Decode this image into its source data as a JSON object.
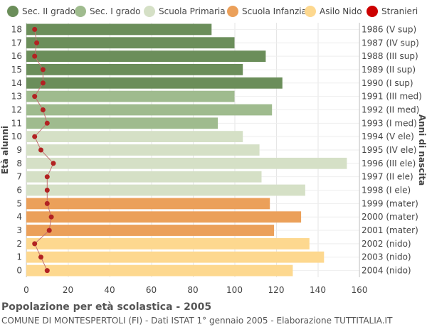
{
  "chart_data": {
    "type": "bar",
    "orientation": "horizontal",
    "ylabel_left": "Età alunni",
    "ylabel_right": "Anni di nascita",
    "xlim": [
      0,
      160
    ],
    "xticks": [
      0,
      20,
      40,
      60,
      80,
      100,
      120,
      140,
      160
    ],
    "grid": true,
    "legend_position": "top",
    "legend": [
      {
        "name": "Sec. II grado",
        "color": "#6b8e5a"
      },
      {
        "name": "Sec. I grado",
        "color": "#9fbb8e"
      },
      {
        "name": "Scuola Primaria",
        "color": "#d5e0c6"
      },
      {
        "name": "Scuola Infanzia",
        "color": "#eba05a"
      },
      {
        "name": "Asilo Nido",
        "color": "#fdd88f"
      },
      {
        "name": "Stranieri",
        "color": "#cc0000"
      }
    ],
    "rows": [
      {
        "age": "18",
        "birth": "1986 (V sup)",
        "value": 89,
        "stranieri": 4,
        "level": 0
      },
      {
        "age": "17",
        "birth": "1987 (IV sup)",
        "value": 100,
        "stranieri": 5,
        "level": 0
      },
      {
        "age": "16",
        "birth": "1988 (III sup)",
        "value": 115,
        "stranieri": 4,
        "level": 0
      },
      {
        "age": "15",
        "birth": "1989 (II sup)",
        "value": 104,
        "stranieri": 8,
        "level": 0
      },
      {
        "age": "14",
        "birth": "1990 (I sup)",
        "value": 123,
        "stranieri": 8,
        "level": 0
      },
      {
        "age": "13",
        "birth": "1991 (III med)",
        "value": 100,
        "stranieri": 4,
        "level": 1
      },
      {
        "age": "12",
        "birth": "1992 (II med)",
        "value": 118,
        "stranieri": 8,
        "level": 1
      },
      {
        "age": "11",
        "birth": "1993 (I med)",
        "value": 92,
        "stranieri": 10,
        "level": 1
      },
      {
        "age": "10",
        "birth": "1994 (V ele)",
        "value": 104,
        "stranieri": 4,
        "level": 2
      },
      {
        "age": "9",
        "birth": "1995 (IV ele)",
        "value": 112,
        "stranieri": 7,
        "level": 2
      },
      {
        "age": "8",
        "birth": "1996 (III ele)",
        "value": 154,
        "stranieri": 13,
        "level": 2
      },
      {
        "age": "7",
        "birth": "1997 (II ele)",
        "value": 113,
        "stranieri": 10,
        "level": 2
      },
      {
        "age": "6",
        "birth": "1998 (I ele)",
        "value": 134,
        "stranieri": 10,
        "level": 2
      },
      {
        "age": "5",
        "birth": "1999 (mater)",
        "value": 117,
        "stranieri": 10,
        "level": 3
      },
      {
        "age": "4",
        "birth": "2000 (mater)",
        "value": 132,
        "stranieri": 12,
        "level": 3
      },
      {
        "age": "3",
        "birth": "2001 (mater)",
        "value": 119,
        "stranieri": 11,
        "level": 3
      },
      {
        "age": "2",
        "birth": "2002 (nido)",
        "value": 136,
        "stranieri": 4,
        "level": 4
      },
      {
        "age": "1",
        "birth": "2003 (nido)",
        "value": 143,
        "stranieri": 7,
        "level": 4
      },
      {
        "age": "0",
        "birth": "2004 (nido)",
        "value": 128,
        "stranieri": 10,
        "level": 4
      }
    ]
  },
  "footer": {
    "title": "Popolazione per età scolastica - 2005",
    "subtitle": "COMUNE DI MONTESPERTOLI (FI) - Dati ISTAT 1° gennaio 2005 - Elaborazione TUTTITALIA.IT"
  }
}
